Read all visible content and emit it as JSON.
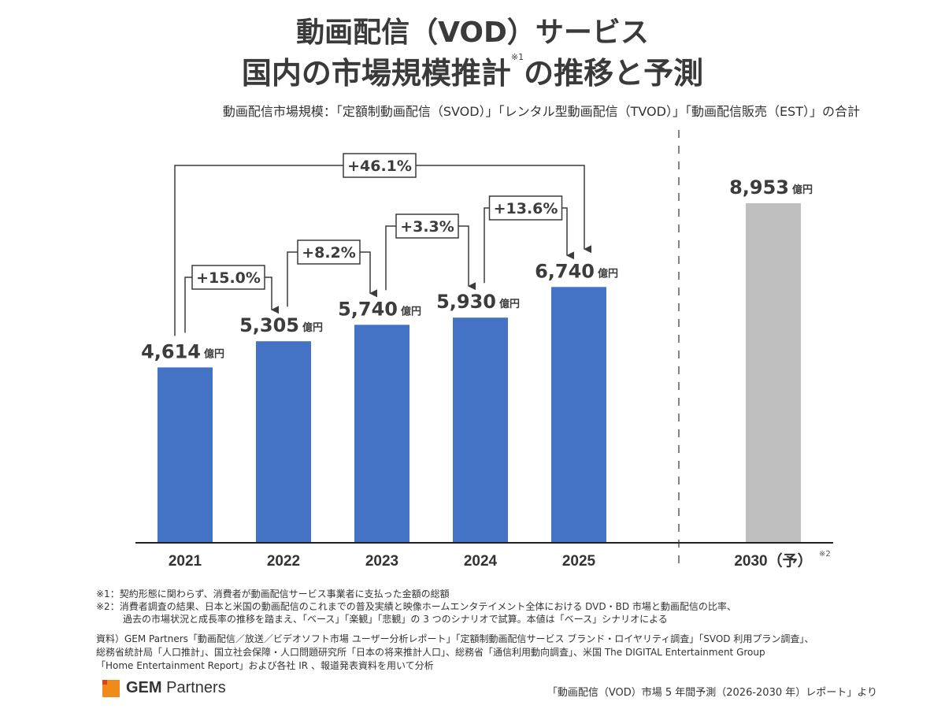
{
  "header": {
    "title_line1": "動画配信（VOD）サービス",
    "title_line2_a": "国内の市場規模推計",
    "title_line2_sup": "※1",
    "title_line2_b": "の推移と予測",
    "subtitle": "動画配信市場規模：「定額制動画配信（SVOD）」「レンタル型動画配信（TVOD）」「動画配信販売（EST）」の合計"
  },
  "chart_data": {
    "type": "bar",
    "title": "動画配信（VOD）サービス 国内の市場規模推計の推移と予測",
    "unit": "億円",
    "categories": [
      "2021",
      "2022",
      "2023",
      "2024",
      "2025",
      "2030（予）"
    ],
    "category_sup": [
      "",
      "",
      "",
      "",
      "",
      "※2"
    ],
    "values": [
      4614,
      5305,
      5740,
      5930,
      6740,
      8953
    ],
    "value_labels": [
      "4,614",
      "5,305",
      "5,740",
      "5,930",
      "6,740",
      "8,953"
    ],
    "forecast": [
      false,
      false,
      false,
      false,
      false,
      true
    ],
    "colors": {
      "actual": "#4472c4",
      "forecast": "#bfbfbf"
    },
    "growth_annotations": [
      {
        "from": "2021",
        "to": "2022",
        "label": "+15.0%"
      },
      {
        "from": "2022",
        "to": "2023",
        "label": "+8.2%"
      },
      {
        "from": "2023",
        "to": "2024",
        "label": "+3.3%"
      },
      {
        "from": "2024",
        "to": "2025",
        "label": "+13.6%"
      },
      {
        "from": "2021",
        "to": "2025",
        "label": "+46.1%"
      }
    ],
    "ylim": [
      0,
      10000
    ],
    "xlabel": "",
    "ylabel": "",
    "grid": false
  },
  "notes": {
    "note1": "※1：契約形態に関わらず、消費者が動画配信サービス事業者に支払った金額の総額",
    "note2_line1": "※2：消費者調査の結果、日本と米国の動画配信のこれまでの普及実績と映像ホームエンタテイメント全体における DVD・BD 市場と動画配信の比率、",
    "note2_line2": "過去の市場状況と成長率の推移を踏まえ、「ベース」「楽観」「悲観」の 3 つのシナリオで試算。本値は「ベース」シナリオによる"
  },
  "sources": {
    "line1": "資料）GEM Partners「動画配信／放送／ビデオソフト市場 ユーザー分析レポート」「定額制動画配信サービス ブランド・ロイヤリティ調査」「SVOD 利用プラン調査」、",
    "line2": "総務省統計局「人口推計」、国立社会保障・人口問題研究所「日本の将来推計人口」、総務省「通信利用動向調査」、米国 The DIGITAL Entertainment Group",
    "line3": "「Home Entertainment Report」および各社 IR 、報道発表資料を用いて分析"
  },
  "footer": {
    "logo_bold": "GEM",
    "logo_rest": " Partners",
    "credit": "「動画配信（VOD）市場 5 年間予測（2026-2030 年）レポート」より"
  }
}
